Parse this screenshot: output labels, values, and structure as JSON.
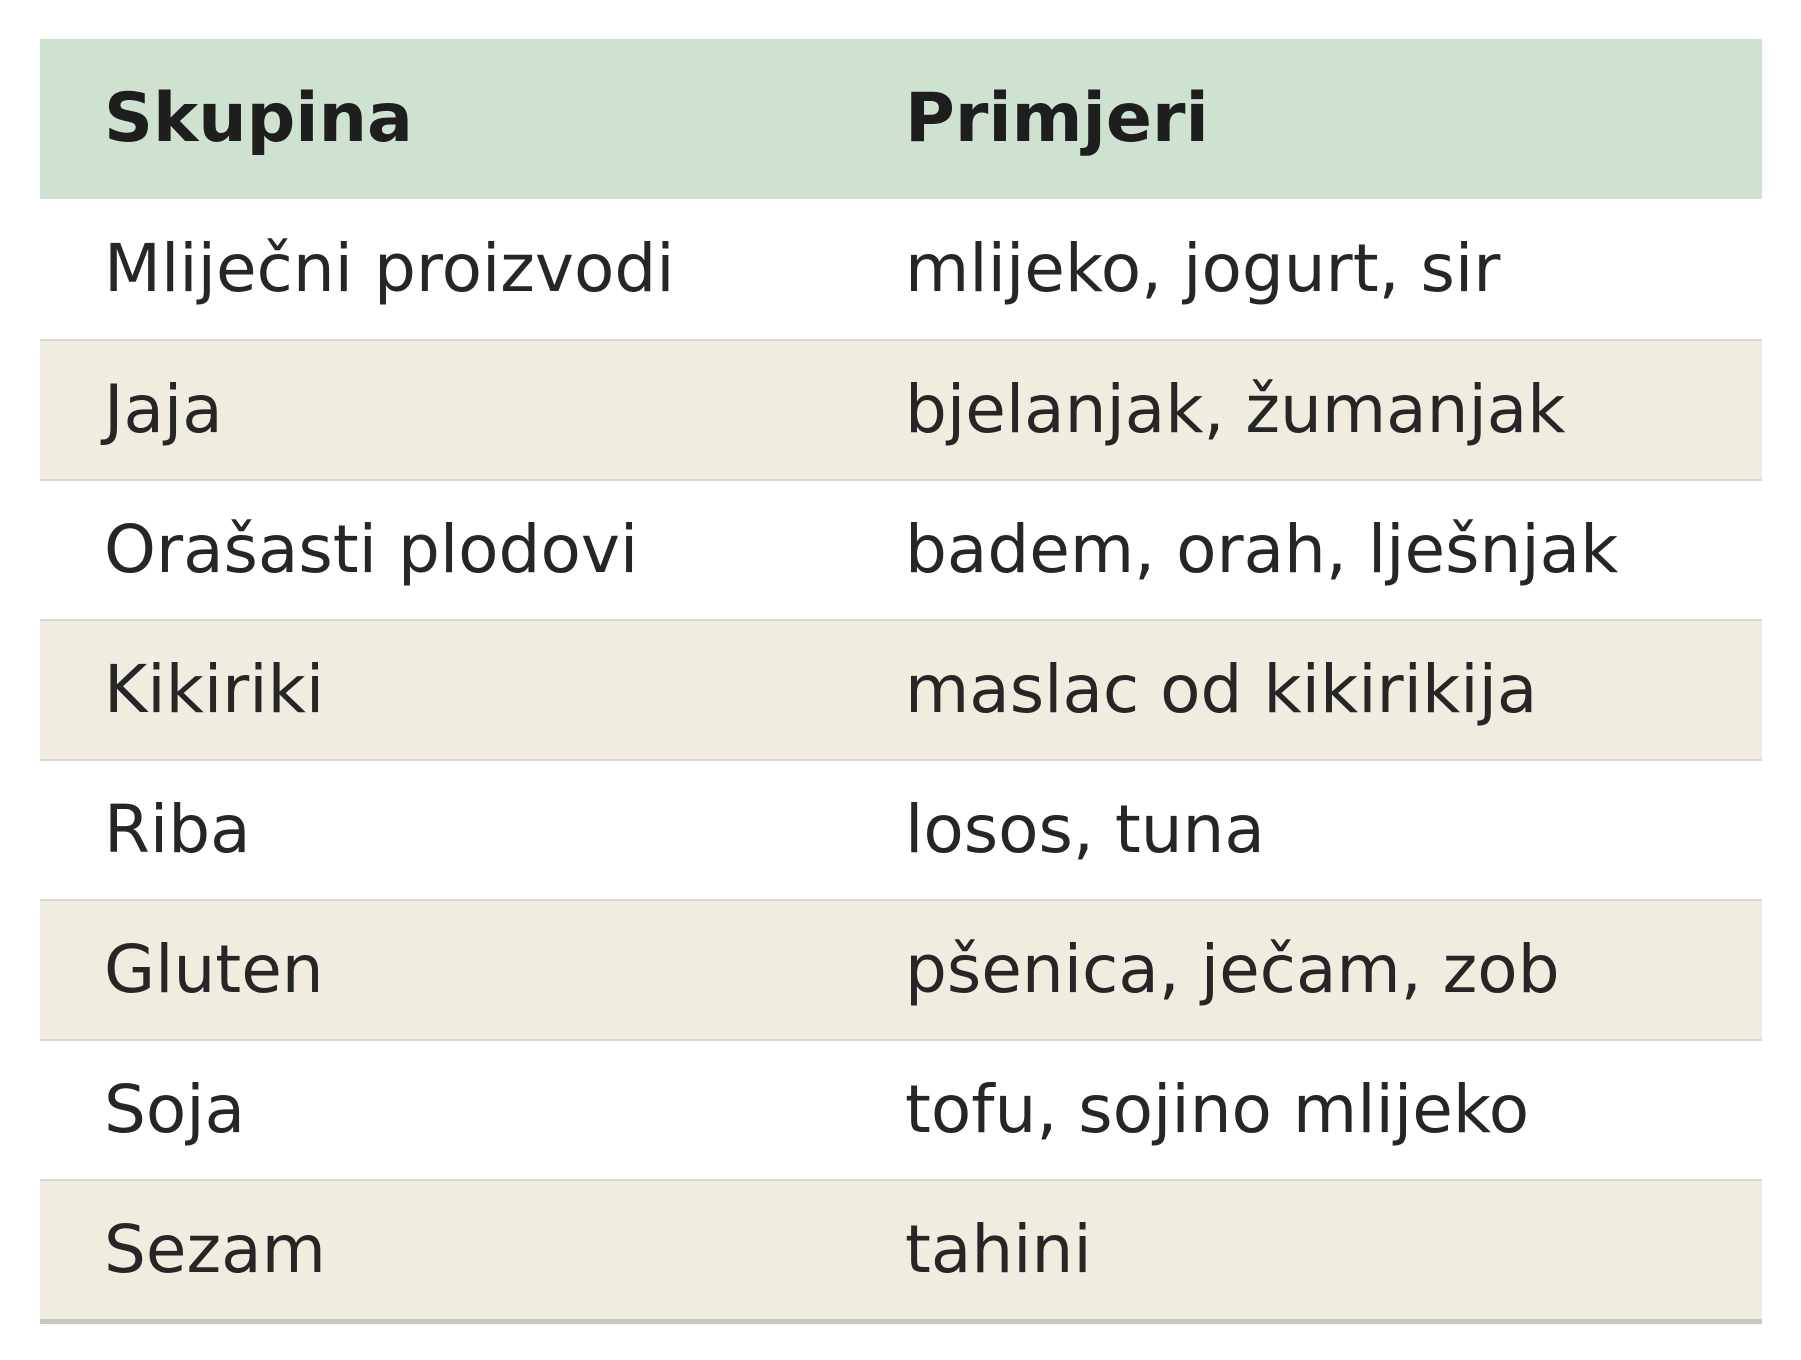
{
  "table": {
    "columns": [
      "Skupina",
      "Primjeri"
    ],
    "rows": [
      {
        "group": "Mliječni proizvodi",
        "examples": "mlijeko, jogurt, sir"
      },
      {
        "group": "Jaja",
        "examples": "bjelanjak, žumanjak"
      },
      {
        "group": "Orašasti plodovi",
        "examples": "badem, orah, lješnjak"
      },
      {
        "group": "Kikiriki",
        "examples": "maslac od kikirikija"
      },
      {
        "group": "Riba",
        "examples": "losos, tuna"
      },
      {
        "group": "Gluten",
        "examples": "pšenica, ječam, zob"
      },
      {
        "group": "Soja",
        "examples": "tofu, sojino mlijeko"
      },
      {
        "group": "Sezam",
        "examples": "tahini"
      }
    ],
    "colors": {
      "header_bg": "#cfe1d1",
      "row_bg": "#ffffff",
      "row_alt_bg": "#f1ece0",
      "border": "#d9d7d2",
      "border_strong": "#c9c7c2",
      "text": "#262626",
      "header_text": "#1e1e1e",
      "page_bg": "#ffffff"
    }
  },
  "chart_data": {
    "type": "table",
    "title": "",
    "columns": [
      "Skupina",
      "Primjeri"
    ],
    "rows": [
      [
        "Mliječni proizvodi",
        "mlijeko, jogurt, sir"
      ],
      [
        "Jaja",
        "bjelanjak, žumanjak"
      ],
      [
        "Orašasti plodovi",
        "badem, orah, lješnjak"
      ],
      [
        "Kikiriki",
        "maslac od kikirikija"
      ],
      [
        "Riba",
        "losos, tuna"
      ],
      [
        "Gluten",
        "pšenica, ječam, zob"
      ],
      [
        "Soja",
        "tofu, sojino mlijeko"
      ],
      [
        "Sezam",
        "tahini"
      ]
    ]
  }
}
